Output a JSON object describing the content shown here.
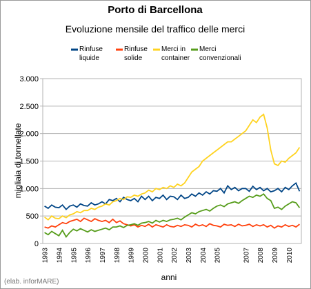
{
  "chart_data": {
    "type": "line",
    "title": "Porto di Barcellona",
    "subtitle": "Evoluzione mensile del traffico delle merci",
    "x_label": "anni",
    "y_label": "migliaia di tonnellate",
    "note": "(elab. inforMARE)",
    "categories": [
      "1993",
      null,
      null,
      null,
      "1994",
      null,
      null,
      null,
      "1995",
      null,
      null,
      null,
      "1996",
      null,
      null,
      null,
      "1997",
      null,
      null,
      null,
      "1998",
      null,
      null,
      null,
      "1999",
      null,
      null,
      null,
      "2000",
      null,
      null,
      null,
      "2001",
      null,
      null,
      null,
      "2002",
      null,
      null,
      null,
      "2003",
      null,
      null,
      null,
      "2004",
      null,
      null,
      null,
      "2005",
      null,
      null,
      null,
      null,
      null,
      null,
      null,
      "2007",
      null,
      null,
      null,
      "2008",
      null,
      null,
      null,
      "2009",
      null,
      null,
      null,
      "2010",
      null,
      null,
      null
    ],
    "series": [
      {
        "name": "Rinfuse liquide",
        "color": "#004586",
        "values": [
          680,
          640,
          700,
          660,
          650,
          700,
          620,
          680,
          700,
          660,
          720,
          690,
          680,
          740,
          700,
          720,
          760,
          720,
          800,
          780,
          820,
          760,
          840,
          800,
          780,
          820,
          760,
          860,
          800,
          860,
          780,
          840,
          820,
          880,
          800,
          860,
          850,
          800,
          880,
          820,
          840,
          900,
          860,
          920,
          880,
          940,
          900,
          960,
          950,
          1000,
          920,
          1050,
          980,
          1020,
          960,
          1000,
          1000,
          950,
          1040,
          980,
          1020,
          960,
          1000,
          940,
          960,
          1000,
          940,
          1020,
          980,
          1050,
          1100,
          950
        ]
      },
      {
        "name": "Rinfuse solide",
        "color": "#ff420e",
        "values": [
          300,
          280,
          320,
          300,
          340,
          380,
          360,
          400,
          420,
          440,
          400,
          460,
          430,
          400,
          450,
          420,
          400,
          420,
          380,
          440,
          380,
          410,
          360,
          340,
          320,
          340,
          300,
          330,
          310,
          350,
          300,
          340,
          320,
          300,
          340,
          310,
          300,
          330,
          310,
          340,
          330,
          300,
          350,
          320,
          340,
          310,
          360,
          330,
          320,
          300,
          350,
          330,
          340,
          310,
          350,
          320,
          330,
          350,
          310,
          340,
          320,
          340,
          300,
          330,
          280,
          320,
          300,
          340,
          310,
          330,
          300,
          350
        ]
      },
      {
        "name": "Merci in container",
        "color": "#ffd320",
        "values": [
          480,
          430,
          500,
          460,
          450,
          500,
          470,
          520,
          540,
          580,
          560,
          600,
          600,
          640,
          620,
          660,
          680,
          720,
          700,
          760,
          780,
          820,
          800,
          850,
          840,
          880,
          860,
          900,
          920,
          970,
          940,
          1000,
          980,
          1020,
          1000,
          1050,
          1020,
          1080,
          1050,
          1100,
          1200,
          1300,
          1350,
          1400,
          1500,
          1550,
          1600,
          1650,
          1700,
          1750,
          1800,
          1850,
          1850,
          1900,
          1950,
          2000,
          2050,
          2150,
          2250,
          2200,
          2300,
          2350,
          2100,
          1700,
          1450,
          1420,
          1500,
          1480,
          1550,
          1600,
          1650,
          1750
        ]
      },
      {
        "name": "Merci convenzionali",
        "color": "#579d1c",
        "values": [
          200,
          160,
          220,
          180,
          140,
          240,
          120,
          200,
          260,
          230,
          270,
          240,
          210,
          250,
          220,
          240,
          260,
          280,
          250,
          300,
          300,
          320,
          290,
          330,
          340,
          360,
          330,
          370,
          380,
          400,
          370,
          420,
          390,
          420,
          400,
          430,
          440,
          460,
          430,
          480,
          520,
          560,
          540,
          580,
          600,
          620,
          590,
          640,
          680,
          700,
          670,
          720,
          740,
          760,
          730,
          780,
          820,
          860,
          840,
          880,
          860,
          900,
          820,
          780,
          640,
          660,
          620,
          680,
          720,
          760,
          740,
          650
        ]
      }
    ],
    "ylim": [
      0,
      3000
    ],
    "yticks": [
      0,
      500,
      {
        "value": 1000,
        "label": "1.000"
      },
      {
        "value": 1500,
        "label": "1.500"
      },
      {
        "value": 2000,
        "label": "2.000"
      },
      {
        "value": 2500,
        "label": "2.500"
      },
      {
        "value": 3000,
        "label": "3.000"
      }
    ],
    "grid": true
  }
}
